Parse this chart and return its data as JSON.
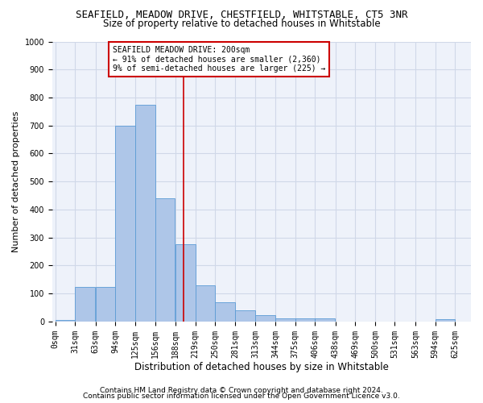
{
  "title1": "SEAFIELD, MEADOW DRIVE, CHESTFIELD, WHITSTABLE, CT5 3NR",
  "title2": "Size of property relative to detached houses in Whitstable",
  "xlabel": "Distribution of detached houses by size in Whitstable",
  "ylabel": "Number of detached properties",
  "footer1": "Contains HM Land Registry data © Crown copyright and database right 2024.",
  "footer2": "Contains public sector information licensed under the Open Government Licence v3.0.",
  "annotation_title": "SEAFIELD MEADOW DRIVE: 200sqm",
  "annotation_line1": "← 91% of detached houses are smaller (2,360)",
  "annotation_line2": "9% of semi-detached houses are larger (225) →",
  "bin_edges": [
    0,
    31,
    63,
    94,
    125,
    156,
    188,
    219,
    250,
    281,
    313,
    344,
    375,
    406,
    438,
    469,
    500,
    531,
    563,
    594,
    625
  ],
  "bin_labels": [
    "0sqm",
    "31sqm",
    "63sqm",
    "94sqm",
    "125sqm",
    "156sqm",
    "188sqm",
    "219sqm",
    "250sqm",
    "281sqm",
    "313sqm",
    "344sqm",
    "375sqm",
    "406sqm",
    "438sqm",
    "469sqm",
    "500sqm",
    "531sqm",
    "563sqm",
    "594sqm",
    "625sqm"
  ],
  "bar_heights": [
    5,
    125,
    125,
    700,
    775,
    440,
    275,
    130,
    70,
    40,
    22,
    12,
    12,
    12,
    0,
    0,
    0,
    0,
    0,
    8
  ],
  "bar_color": "#aec6e8",
  "bar_edge_color": "#5b9bd5",
  "vline_color": "#cc0000",
  "vline_x": 200,
  "annotation_box_color": "#cc0000",
  "ylim": [
    0,
    1000
  ],
  "yticks": [
    0,
    100,
    200,
    300,
    400,
    500,
    600,
    700,
    800,
    900,
    1000
  ],
  "grid_color": "#d0d8e8",
  "bg_color": "#eef2fa",
  "title1_fontsize": 9,
  "title2_fontsize": 8.5,
  "ylabel_fontsize": 8,
  "xlabel_fontsize": 8.5,
  "tick_fontsize": 7,
  "annot_fontsize": 7,
  "footer_fontsize": 6.5
}
